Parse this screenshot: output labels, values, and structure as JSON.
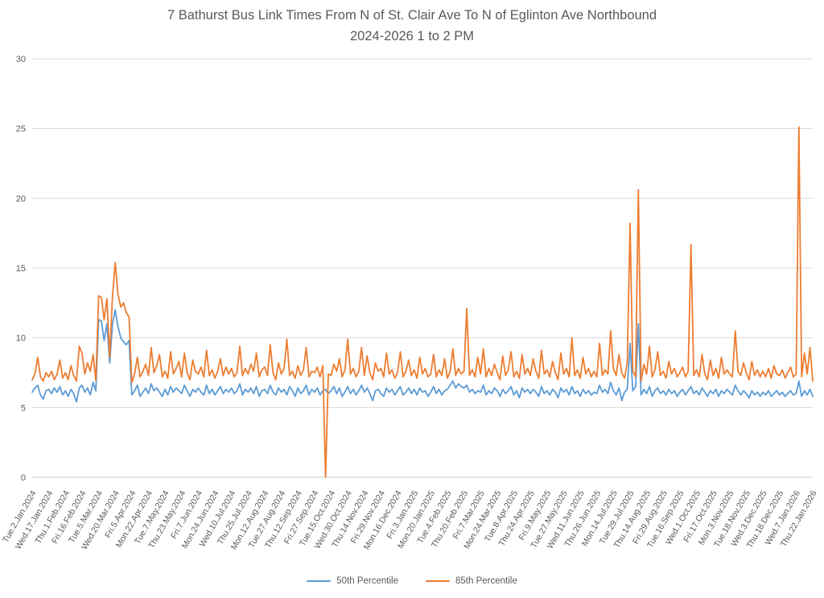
{
  "chart_data": {
    "type": "line",
    "title": "7 Bathurst Bus Link Times From N of St. Clair Ave To N of Eglinton Ave Northbound",
    "subtitle": "2024-2026 1 to 2 PM",
    "xlabel": "",
    "ylabel": "",
    "ylim": [
      0,
      30
    ],
    "y_ticks": [
      0,
      5,
      10,
      15,
      20,
      25,
      30
    ],
    "grid": "horizontal-only",
    "legend_position": "bottom-center",
    "points_per_x_tick": 6,
    "x_tick_labels": [
      "Tue.2.Jan.2024",
      "Wed.17.Jan.2024",
      "Thu.1.Feb.2024",
      "Fri.16.Feb.2024",
      "Tue.5.Mar.2024",
      "Wed.20.Mar.2024",
      "Fri.5.Apr.2024",
      "Mon.22.Apr.2024",
      "Tue.7.May.2024",
      "Thu.23.May.2024",
      "Fri.7.Jun.2024",
      "Mon.24.Jun.2024",
      "Wed.10.Jul.2024",
      "Thu.25.Jul.2024",
      "Mon.12.Aug.2024",
      "Tue.27.Aug.2024",
      "Thu.12.Sep.2024",
      "Fri.27.Sep.2024",
      "Tue.15.Oct.2024",
      "Wed.30.Oct.2024",
      "Thu.14.Nov.2024",
      "Fri.29.Nov.2024",
      "Mon.16.Dec.2024",
      "Fri.3.Jan.2025",
      "Mon.20.Jan.2025",
      "Tue.4.Feb.2025",
      "Thu.20.Feb.2025",
      "Fri.7.Mar.2025",
      "Mon.24.Mar.2025",
      "Tue.8.Apr.2025",
      "Thu.24.Apr.2025",
      "Fri.9.May.2025",
      "Tue.27.May.2025",
      "Wed.11.Jun.2025",
      "Thu.26.Jun.2025",
      "Mon.14.Jul.2025",
      "Tue.29.Jul.2025",
      "Thu.14.Aug.2025",
      "Fri.29.Aug.2025",
      "Tue.16.Sep.2025",
      "Wed.1.Oct.2025",
      "Fri.17.Oct.2025",
      "Mon.3.Nov.2025",
      "Tue.18.Nov.2025",
      "Wed.3.Dec.2025",
      "Thu.18.Dec.2025",
      "Wed.7.Jan.2026",
      "Thu.22.Jan.2026"
    ],
    "series": [
      {
        "name": "50th Percentile",
        "color": "#5B9BD5",
        "values": [
          6.1,
          6.4,
          6.6,
          5.9,
          5.6,
          6.2,
          6.3,
          6.0,
          6.4,
          6.1,
          6.5,
          5.9,
          6.2,
          5.8,
          6.3,
          6.0,
          5.4,
          6.4,
          6.6,
          6.1,
          6.4,
          5.9,
          6.8,
          6.2,
          11.3,
          11.2,
          9.8,
          11.0,
          8.2,
          11.0,
          12.0,
          10.8,
          10.0,
          9.7,
          9.5,
          9.8,
          5.9,
          6.2,
          6.6,
          5.8,
          6.1,
          6.4,
          6.0,
          6.7,
          6.2,
          6.4,
          6.1,
          5.8,
          6.3,
          5.9,
          6.5,
          6.1,
          6.4,
          6.2,
          6.0,
          6.6,
          6.2,
          5.8,
          6.3,
          6.1,
          6.4,
          6.1,
          5.9,
          6.6,
          6.0,
          6.3,
          5.9,
          6.2,
          6.5,
          6.0,
          6.3,
          6.1,
          6.4,
          6.0,
          6.2,
          6.7,
          5.9,
          6.3,
          6.1,
          6.4,
          6.0,
          6.5,
          5.8,
          6.2,
          6.3,
          6.0,
          6.6,
          6.1,
          5.9,
          6.4,
          6.1,
          6.3,
          5.9,
          6.5,
          6.2,
          5.8,
          6.4,
          6.0,
          6.2,
          6.6,
          5.9,
          6.3,
          6.1,
          6.4,
          5.9,
          6.2,
          6.3,
          6.0,
          6.2,
          6.5,
          6.0,
          6.4,
          5.8,
          6.1,
          6.5,
          6.0,
          6.3,
          5.9,
          6.2,
          6.6,
          6.1,
          6.4,
          6.0,
          5.5,
          6.2,
          6.3,
          6.0,
          5.8,
          6.4,
          6.1,
          6.3,
          5.9,
          6.2,
          6.5,
          5.9,
          6.1,
          6.4,
          6.0,
          6.3,
          5.9,
          6.4,
          6.1,
          6.2,
          5.8,
          6.1,
          6.5,
          6.0,
          6.3,
          5.9,
          6.2,
          6.3,
          6.6,
          6.9,
          6.4,
          6.7,
          6.5,
          6.4,
          6.6,
          6.1,
          6.3,
          6.0,
          6.2,
          6.1,
          6.6,
          5.9,
          6.2,
          6.0,
          6.4,
          6.2,
          5.8,
          6.3,
          6.0,
          6.2,
          6.5,
          5.9,
          6.2,
          5.7,
          6.4,
          6.1,
          6.3,
          6.0,
          6.3,
          6.1,
          5.8,
          6.5,
          6.0,
          6.2,
          5.9,
          6.3,
          6.1,
          5.7,
          6.4,
          6.1,
          6.3,
          5.9,
          6.5,
          6.0,
          6.2,
          5.8,
          6.3,
          6.0,
          6.2,
          5.9,
          6.1,
          6.0,
          6.6,
          6.1,
          6.3,
          6.0,
          6.8,
          6.2,
          5.9,
          6.4,
          5.5,
          6.1,
          6.3,
          9.6,
          6.2,
          6.5,
          11.0,
          5.9,
          6.3,
          6.0,
          6.5,
          5.8,
          6.2,
          6.4,
          6.0,
          6.2,
          5.9,
          6.3,
          6.0,
          6.2,
          5.8,
          6.1,
          6.3,
          5.9,
          6.2,
          6.5,
          6.0,
          6.2,
          5.9,
          6.4,
          6.1,
          5.8,
          6.2,
          6.0,
          6.3,
          5.8,
          6.2,
          6.0,
          6.3,
          6.1,
          5.9,
          6.6,
          6.2,
          5.9,
          6.2,
          6.0,
          5.7,
          6.2,
          5.9,
          6.1,
          5.8,
          6.1,
          5.9,
          6.2,
          5.8,
          6.0,
          6.2,
          5.9,
          6.1,
          5.8,
          6.0,
          6.2,
          5.9,
          6.0,
          6.9,
          5.8,
          6.2,
          5.9,
          6.3,
          5.8
        ]
      },
      {
        "name": "85th Percentile",
        "color": "#ED7D31",
        "values": [
          7.0,
          7.4,
          8.6,
          7.2,
          6.9,
          7.5,
          7.2,
          7.6,
          7.0,
          7.4,
          8.4,
          7.1,
          7.5,
          7.0,
          8.0,
          7.3,
          6.9,
          9.4,
          8.9,
          7.4,
          8.2,
          7.6,
          8.8,
          6.9,
          13.0,
          12.9,
          11.3,
          12.8,
          8.6,
          13.0,
          15.4,
          13.1,
          12.2,
          12.5,
          11.8,
          11.5,
          6.8,
          7.4,
          8.6,
          7.2,
          7.6,
          8.1,
          7.3,
          9.3,
          7.5,
          8.0,
          8.8,
          7.2,
          7.6,
          7.1,
          9.0,
          7.4,
          7.8,
          8.3,
          7.2,
          8.9,
          7.5,
          7.0,
          8.4,
          7.6,
          7.4,
          7.9,
          7.2,
          9.1,
          7.3,
          7.7,
          7.1,
          7.6,
          8.5,
          7.3,
          7.9,
          7.4,
          7.8,
          7.2,
          7.5,
          9.4,
          7.3,
          7.8,
          7.4,
          8.1,
          7.6,
          8.9,
          7.2,
          7.7,
          7.9,
          7.3,
          9.5,
          7.5,
          7.0,
          8.2,
          7.4,
          7.8,
          9.9,
          7.3,
          7.6,
          7.1,
          8.0,
          7.3,
          7.7,
          9.3,
          7.2,
          7.6,
          7.5,
          7.9,
          7.2,
          8.0,
          0.0,
          7.4,
          7.3,
          8.1,
          7.6,
          8.5,
          7.2,
          7.7,
          9.9,
          7.4,
          7.8,
          7.2,
          7.6,
          9.3,
          7.3,
          8.7,
          7.5,
          7.0,
          8.2,
          7.6,
          7.8,
          7.2,
          8.9,
          7.4,
          7.7,
          7.1,
          7.5,
          9.0,
          7.2,
          7.6,
          8.4,
          7.3,
          7.7,
          7.1,
          8.6,
          7.4,
          7.8,
          7.2,
          7.4,
          8.8,
          7.2,
          7.7,
          7.3,
          8.5,
          7.1,
          7.6,
          9.2,
          7.3,
          7.8,
          7.4,
          7.6,
          12.1,
          7.3,
          7.7,
          7.2,
          8.6,
          7.4,
          9.2,
          7.2,
          7.8,
          7.3,
          8.1,
          7.5,
          7.0,
          8.7,
          7.3,
          7.7,
          9.0,
          7.2,
          7.6,
          7.1,
          8.8,
          7.4,
          7.8,
          7.3,
          8.5,
          7.6,
          7.1,
          9.1,
          7.4,
          7.7,
          7.2,
          8.3,
          7.5,
          7.0,
          8.9,
          7.4,
          7.8,
          7.2,
          10.0,
          7.3,
          7.7,
          7.1,
          8.6,
          7.4,
          7.8,
          7.2,
          7.6,
          7.2,
          9.6,
          7.3,
          7.7,
          7.4,
          10.5,
          7.8,
          7.3,
          8.8,
          7.5,
          7.1,
          8.2,
          18.2,
          7.6,
          7.2,
          20.6,
          6.9,
          8.1,
          7.4,
          9.4,
          7.2,
          7.7,
          9.0,
          7.3,
          7.6,
          7.1,
          8.3,
          7.4,
          7.8,
          7.2,
          7.5,
          7.9,
          7.2,
          7.6,
          16.7,
          7.3,
          7.7,
          7.2,
          8.8,
          7.4,
          7.0,
          8.4,
          7.3,
          7.8,
          7.1,
          8.6,
          7.4,
          7.7,
          7.4,
          7.2,
          10.5,
          7.6,
          7.3,
          8.2,
          7.5,
          7.0,
          8.3,
          7.3,
          7.7,
          7.2,
          7.6,
          7.2,
          7.8,
          7.1,
          8.0,
          7.4,
          7.3,
          7.7,
          7.1,
          7.5,
          7.9,
          7.2,
          7.4,
          25.1,
          7.2,
          8.9,
          7.4,
          9.3,
          6.9
        ]
      }
    ]
  },
  "styles": {
    "background": "#FFFFFF",
    "title_color": "#595959",
    "axis_label_color": "#595959",
    "gridline_color": "#D9D9D9",
    "axis_line_color": "#C9C9C9",
    "series_50th_color": "#5B9BD5",
    "series_85th_color": "#ED7D31"
  }
}
